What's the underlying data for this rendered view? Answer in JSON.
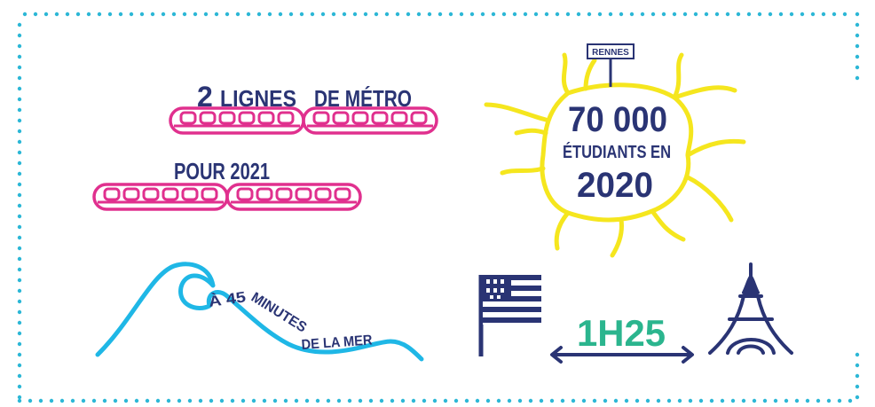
{
  "colors": {
    "navy": "#2a3474",
    "pink": "#e0308e",
    "yellow": "#f5e61e",
    "cyan": "#1fb7e6",
    "green": "#2bb58e",
    "border": "#2cb7d6"
  },
  "metro": {
    "line1_number": "2",
    "line1_text_a": "LIGNES",
    "line1_text_b": "DE MÉTRO",
    "line2_text": "POUR 2021",
    "icon": "metro-train-icon"
  },
  "students": {
    "sign_label": "RENNES",
    "number": "70 000",
    "line2": "ÉTUDIANTS EN",
    "year": "2020",
    "icon": "city-map-icon"
  },
  "sea": {
    "text_a": "À 45",
    "text_b": "MINUTES",
    "text_c": "DE LA MER",
    "icon": "wave-icon"
  },
  "paris": {
    "duration": "1H25",
    "icons": [
      "breton-flag-icon",
      "double-arrow-icon",
      "eiffel-tower-icon"
    ]
  }
}
